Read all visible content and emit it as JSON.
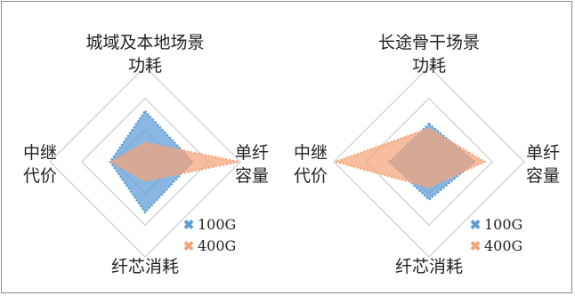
{
  "chart_data": [
    {
      "type": "radar",
      "title": "",
      "axes": [
        "城域及本地场景\n功耗",
        "单纤\n容量",
        "纤芯消耗",
        "中继\n代价"
      ],
      "rlim": [
        0,
        3
      ],
      "gridlines": 3,
      "series": [
        {
          "name": "100G",
          "color": "#5b9bd5",
          "values": [
            1.6,
            1.5,
            1.6,
            1.1
          ]
        },
        {
          "name": "400G",
          "color": "#f4a37a",
          "values": [
            0.6,
            2.95,
            0.6,
            1.05
          ]
        }
      ],
      "legend_position": "bottom-right"
    },
    {
      "type": "radar",
      "title": "",
      "axes": [
        "长途骨干场景\n功耗",
        "单纤\n容量",
        "纤芯消耗",
        "中继\n代价"
      ],
      "rlim": [
        0,
        3
      ],
      "gridlines": 3,
      "series": [
        {
          "name": "100G",
          "color": "#5b9bd5",
          "values": [
            1.2,
            1.45,
            1.2,
            1.25
          ]
        },
        {
          "name": "400G",
          "color": "#f4a37a",
          "values": [
            1.05,
            1.75,
            0.8,
            2.95
          ]
        }
      ],
      "legend_position": "bottom-right"
    }
  ]
}
